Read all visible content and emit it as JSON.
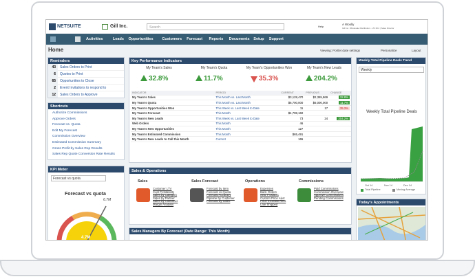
{
  "header": {
    "logo": "NETSUITE",
    "company": "Gill Inc.",
    "search_placeholder": "Search",
    "help": "Help",
    "user": "A Woolly",
    "user_role": "Gill Inc. Wholesale Distribution - US 18.2 | Sales Director"
  },
  "nav": [
    "Activities",
    "Leads",
    "Opportunities",
    "Customers",
    "Forecast",
    "Reports",
    "Documents",
    "Setup",
    "Support"
  ],
  "page": {
    "title": "Home",
    "viewing": "Viewing: Portlet date settings",
    "personalize": "Personalize",
    "layout": "Layout"
  },
  "reminders": {
    "title": "Reminders",
    "items": [
      {
        "count": 43,
        "label": "Sales Orders to Print"
      },
      {
        "count": 6,
        "label": "Quotes to Print"
      },
      {
        "count": 65,
        "label": "Opportunities to Close"
      },
      {
        "count": 2,
        "label": "Event Invitations to respond to"
      },
      {
        "count": 12,
        "label": "Sales Orders to Approve"
      }
    ]
  },
  "shortcuts": {
    "title": "Shortcuts",
    "items": [
      "Authorize Commissions",
      "Approve Orders",
      "Forecast vs. Quota",
      "Edit My Forecast",
      "Commission Overview",
      "Estimated Commission Summary",
      "Gross Profit by Sales Rep Results",
      "Sales Rep Quote Conversion Rate Results"
    ]
  },
  "kpi_meter": {
    "title": "KPI Meter",
    "select": "Forecast vs quota",
    "chart_title": "Forecast vs quota",
    "max_label": "6.7M",
    "value_label": "4.7M"
  },
  "kpi": {
    "title": "Key Performance Indicators",
    "headlines": [
      {
        "label": "My Team's Sales",
        "value": "32.8%",
        "direction": "up"
      },
      {
        "label": "My Team's Quota",
        "value": "11.7%",
        "direction": "up"
      },
      {
        "label": "My Team's Opportunities Won",
        "value": "35.3%",
        "direction": "down"
      },
      {
        "label": "My Team's New Leads",
        "value": "204.2%",
        "direction": "up"
      }
    ],
    "columns": [
      "INDICATOR",
      "PERIOD",
      "CURRENT",
      "PREVIOUS",
      "CHANGE"
    ],
    "rows": [
      {
        "indicator": "My Team's Sales",
        "period": "This Month vs. Last Month",
        "current": "$3,128,470",
        "previous": "$2,355,869",
        "change": "32.8%",
        "direction": "up"
      },
      {
        "indicator": "My Team's Quota",
        "period": "This Month vs. Last Month",
        "current": "$6,700,000",
        "previous": "$6,000,000",
        "change": "11.7%",
        "direction": "up"
      },
      {
        "indicator": "My Team's Opportunities Won",
        "period": "This Week vs. Last Week to Date",
        "current": "11",
        "previous": "17",
        "change": "35.3%",
        "direction": "down"
      },
      {
        "indicator": "My Team's Forecast",
        "period": "This Month",
        "current": "$4,708,160"
      },
      {
        "indicator": "My Team's New Leads",
        "period": "This Week vs. Last Week to Date",
        "current": "73",
        "previous": "24",
        "change": "204.2%",
        "direction": "up"
      },
      {
        "indicator": "Web Orders",
        "period": "This Month",
        "current": "46"
      },
      {
        "indicator": "My Team's New Opportunities",
        "period": "This Month",
        "current": "127"
      },
      {
        "indicator": "My Team's Estimated Commission",
        "period": "This Month",
        "current": "$65,491"
      },
      {
        "indicator": "My Team's New Leads to Call this Month",
        "period": "Current",
        "current": "165"
      }
    ]
  },
  "sales_ops": {
    "title": "Sales & Operations",
    "groups": [
      {
        "title": "Sales",
        "links": [
          "Customer LTV",
          "Cust Profitability",
          "Sales by Category",
          "Sales by Partner",
          "Sales by Customer",
          "Margin Analysis"
        ]
      },
      {
        "title": "Sales Forecast",
        "links": [
          "Forecast by Item",
          "Forecast vs Quota",
          "Forecast Accuracy",
          "Pipeline by Customer",
          "Forecast by Sales"
        ]
      },
      {
        "title": "Operations",
        "links": [
          "Expenses",
          "Back Orders",
          "New Products",
          "Custom Price Alert",
          "Price Increase Alert",
          "Late Shipped"
        ]
      },
      {
        "title": "Commissions",
        "links": [
          "Paid Commissions",
          "Commission Overview",
          "Approve Commissions",
          "Pending Commissions"
        ]
      }
    ]
  },
  "forecast_table": {
    "title": "Sales Managers By Forecast (Date Range: This Month)"
  },
  "pipeline": {
    "title": "Weekly Total Pipeline Deals Trend",
    "select": "Weekly",
    "chart_title": "Weekly Total Pipeline Deals",
    "x_labels": [
      "Oct 14",
      "Nov 14",
      "Dec 14"
    ],
    "legend": [
      "Total Pipeline",
      "Moving Average"
    ]
  },
  "appointments": {
    "title": "Today's Appointments"
  }
}
